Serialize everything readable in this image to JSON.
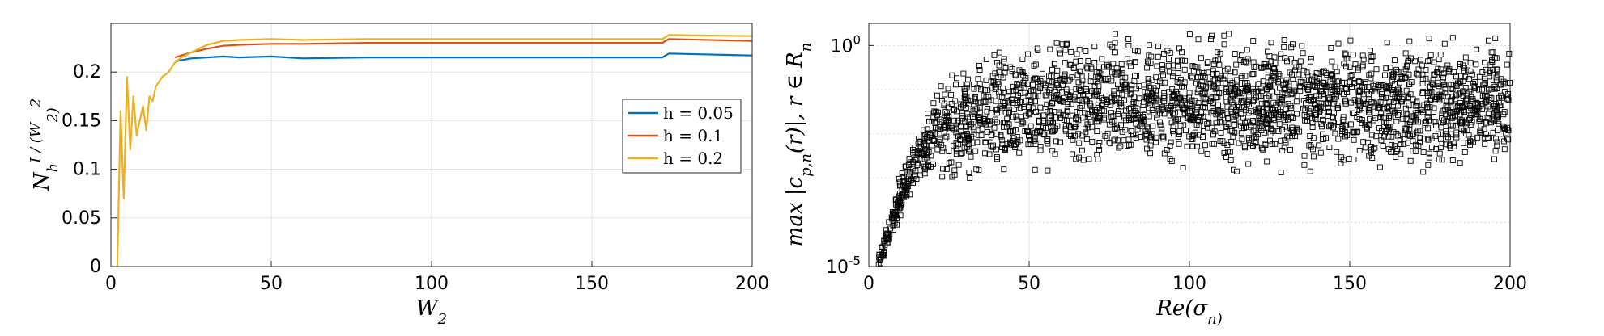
{
  "chart_data": [
    {
      "type": "line",
      "xlabel": "W_2",
      "ylabel": "N_h^I / (W_2)^2",
      "xlim": [
        0,
        200
      ],
      "ylim": [
        0,
        0.25
      ],
      "xticks": [
        0,
        50,
        100,
        150,
        200
      ],
      "yticks": [
        0,
        0.05,
        0.1,
        0.15,
        0.2
      ],
      "ytick_labels": [
        "0",
        "0.05",
        "0.1",
        "0.15",
        "0.2"
      ],
      "grid": true,
      "legend_position": "right",
      "series": [
        {
          "name": "h = 0.05",
          "color": "#0072BD",
          "x": [
            20,
            25,
            30,
            35,
            40,
            50,
            60,
            80,
            100,
            120,
            150,
            172,
            174,
            200
          ],
          "y": [
            0.211,
            0.214,
            0.215,
            0.216,
            0.215,
            0.216,
            0.214,
            0.215,
            0.215,
            0.215,
            0.215,
            0.215,
            0.219,
            0.217
          ]
        },
        {
          "name": "h = 0.1",
          "color": "#D95319",
          "x": [
            20,
            25,
            30,
            35,
            40,
            50,
            60,
            80,
            100,
            120,
            150,
            172,
            174,
            200
          ],
          "y": [
            0.215,
            0.22,
            0.224,
            0.227,
            0.228,
            0.229,
            0.229,
            0.23,
            0.23,
            0.23,
            0.23,
            0.23,
            0.234,
            0.232
          ]
        },
        {
          "name": "h = 0.2",
          "color": "#EDB120",
          "x": [
            2,
            3,
            4,
            5,
            6,
            7,
            8,
            9,
            10,
            11,
            12,
            13,
            14,
            15,
            16,
            18,
            20,
            22,
            25,
            28,
            30,
            35,
            40,
            50,
            60,
            80,
            100,
            120,
            150,
            172,
            174,
            200
          ],
          "y": [
            0.0,
            0.16,
            0.07,
            0.195,
            0.12,
            0.175,
            0.135,
            0.15,
            0.165,
            0.14,
            0.175,
            0.17,
            0.185,
            0.19,
            0.195,
            0.2,
            0.21,
            0.215,
            0.22,
            0.225,
            0.228,
            0.232,
            0.233,
            0.234,
            0.233,
            0.234,
            0.234,
            0.234,
            0.234,
            0.234,
            0.238,
            0.237
          ]
        }
      ]
    },
    {
      "type": "scatter",
      "xlabel": "Re(σ_n)",
      "ylabel": "max |c_{p,n}(r)|, r ∈ R_n",
      "xlim": [
        0,
        200
      ],
      "ylim_log10": [
        -5,
        0.5
      ],
      "xticks": [
        0,
        50,
        100,
        150,
        200
      ],
      "ytick_labels": [
        "10^0",
        "10^-5"
      ],
      "yscale": "log",
      "grid": true,
      "marker": "open square",
      "series": [
        {
          "name": "",
          "x": [
            3,
            5,
            7,
            9,
            11,
            13,
            15,
            17,
            19,
            21,
            24,
            27,
            30,
            34,
            38,
            42,
            46,
            50,
            55,
            60,
            65,
            70,
            75,
            80,
            85,
            90,
            95,
            100,
            105,
            110,
            115,
            120,
            125,
            130,
            135,
            140,
            145,
            150,
            155,
            160,
            165,
            170,
            175,
            180,
            185,
            190,
            195,
            200
          ],
          "log10_y": [
            -4.9,
            -4.5,
            -4.0,
            -3.6,
            -3.2,
            -2.9,
            -2.6,
            -2.4,
            -2.2,
            -2.0,
            -1.9,
            -1.8,
            -1.7,
            -1.6,
            -1.5,
            -1.5,
            -1.4,
            -1.4,
            -1.4,
            -1.3,
            -1.3,
            -1.3,
            -1.3,
            -1.3,
            -1.3,
            -1.3,
            -1.3,
            -1.3,
            -1.3,
            -1.3,
            -1.3,
            -1.3,
            -1.3,
            -1.3,
            -1.3,
            -1.3,
            -1.3,
            -1.3,
            -1.3,
            -1.3,
            -1.3,
            -1.3,
            -1.3,
            -1.3,
            -1.3,
            -1.3,
            -1.3,
            -1.3
          ],
          "y_spread_log10": [
            0.2,
            0.3,
            0.4,
            0.5,
            0.6,
            0.7,
            0.8,
            0.9,
            1.0,
            1.1,
            1.2,
            1.3,
            1.4,
            1.4,
            1.5,
            1.5,
            1.5,
            1.5,
            1.5,
            1.5,
            1.5,
            1.5,
            1.5,
            1.5,
            1.5,
            1.5,
            1.5,
            1.5,
            1.5,
            1.5,
            1.5,
            1.5,
            1.5,
            1.5,
            1.5,
            1.5,
            1.5,
            1.5,
            1.5,
            1.5,
            1.5,
            1.5,
            1.5,
            1.5,
            1.5,
            1.5,
            1.5,
            1.5
          ]
        }
      ]
    }
  ]
}
